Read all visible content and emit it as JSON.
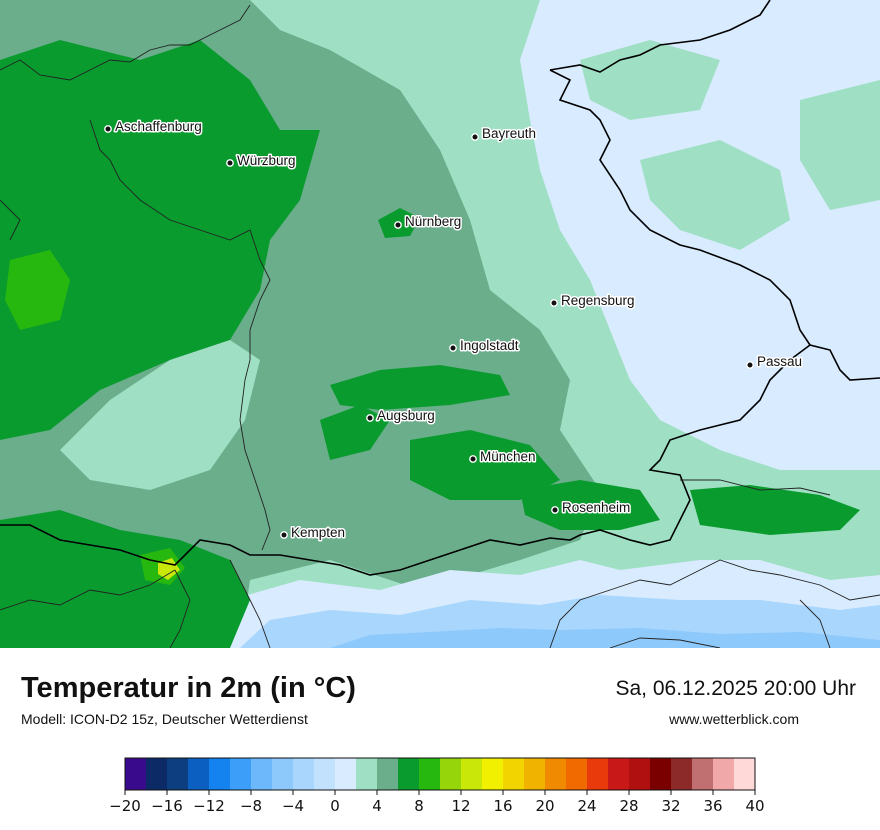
{
  "map": {
    "cities": [
      {
        "name": "Aschaffenburg"
      },
      {
        "name": "Würzburg"
      },
      {
        "name": "Bayreuth"
      },
      {
        "name": "Nürnberg"
      },
      {
        "name": "Regensburg"
      },
      {
        "name": "Ingolstadt"
      },
      {
        "name": "Passau"
      },
      {
        "name": "Augsburg"
      },
      {
        "name": "München"
      },
      {
        "name": "Rosenheim"
      },
      {
        "name": "Kempten"
      }
    ]
  },
  "footer": {
    "title": "Temperatur in 2m (in °C)",
    "model": "Modell: ICON-D2 15z, Deutscher Wetterdienst",
    "datetime": "Sa, 06.12.2025 20:00 Uhr",
    "website": "www.wetterblick.com"
  },
  "legend": {
    "min": -20,
    "max": 40,
    "tick_labels": [
      "−20",
      "−16",
      "−12",
      "−8",
      "−4",
      "0",
      "4",
      "8",
      "12",
      "16",
      "20",
      "24",
      "28",
      "32",
      "36",
      "40"
    ],
    "colors": [
      "#3a0a8c",
      "#0b2a66",
      "#0d3f80",
      "#0a5fc0",
      "#1483f0",
      "#3c9ef8",
      "#6db8fb",
      "#8ec9fb",
      "#a8d6fd",
      "#c2e1fd",
      "#d9ebfe",
      "#9fe0c4",
      "#6aae8c",
      "#0a9b2e",
      "#27b80f",
      "#96d50a",
      "#c9e80a",
      "#f0f000",
      "#f2d400",
      "#f0b400",
      "#f08a00",
      "#f06a00",
      "#e83a0a",
      "#c81818",
      "#b01010",
      "#7a0000",
      "#8c2a2a",
      "#c07070",
      "#f0a8a8",
      "#ffd8d8"
    ]
  }
}
